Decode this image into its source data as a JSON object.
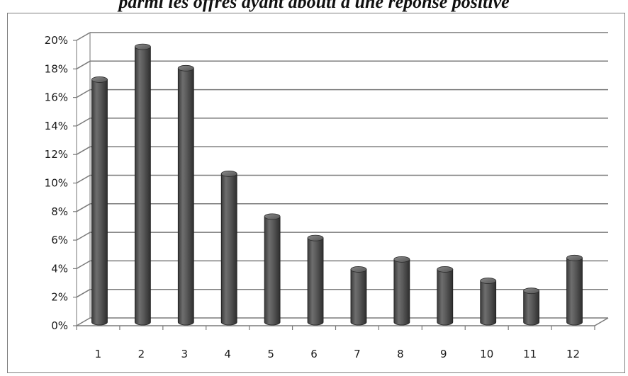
{
  "chart_data": {
    "type": "bar",
    "title": "parmi les offres ayant abouti à une réponse positive",
    "categories": [
      "1",
      "2",
      "3",
      "4",
      "5",
      "6",
      "7",
      "8",
      "9",
      "10",
      "11",
      "12"
    ],
    "values": [
      17.0,
      19.3,
      17.8,
      10.4,
      7.4,
      5.9,
      3.7,
      4.4,
      3.7,
      2.9,
      2.2,
      4.5
    ],
    "y_tick_labels": [
      "0%",
      "2%",
      "4%",
      "6%",
      "8%",
      "10%",
      "12%",
      "14%",
      "16%",
      "18%",
      "20%"
    ],
    "ylim": [
      0,
      20
    ],
    "y_unit": "%",
    "grid": true,
    "legend": "none",
    "bar_style": "3d-cylinder",
    "bar_color": "#4a4a4a",
    "xlabel": "",
    "ylabel": ""
  }
}
